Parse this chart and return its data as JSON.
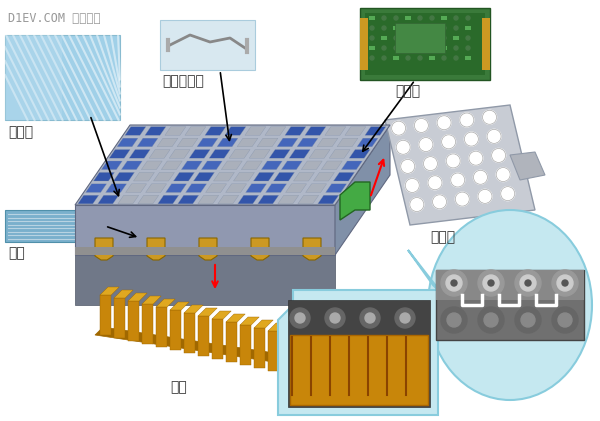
{
  "title_text": "D1EV.COM 第一电动",
  "title_color": "#999999",
  "bg_color": "#ffffff",
  "labels": {
    "ge_li_ban": "隔离板",
    "wen_du": "温度传感器",
    "cai_ji_ban": "采集板",
    "mu_xian_pai": "母线牌",
    "ge_ceng": "隔层",
    "san_re": "散热"
  },
  "light_blue": "#c5e8f0",
  "blue_box_ec": "#88ccdd",
  "gold_color": "#c8860a",
  "gold_dark": "#a06800",
  "gold_light": "#e0a820",
  "gray_plate": "#c0c4cc",
  "gray_dark": "#9099a8",
  "battery_top": "#b0b8c8",
  "battery_side": "#8090a8",
  "battery_front": "#9098b0",
  "cell_blue": "#3355aa",
  "cell_green": "#88cc88",
  "cell_gray": "#aab0bb",
  "green_connector": "#44aa44"
}
